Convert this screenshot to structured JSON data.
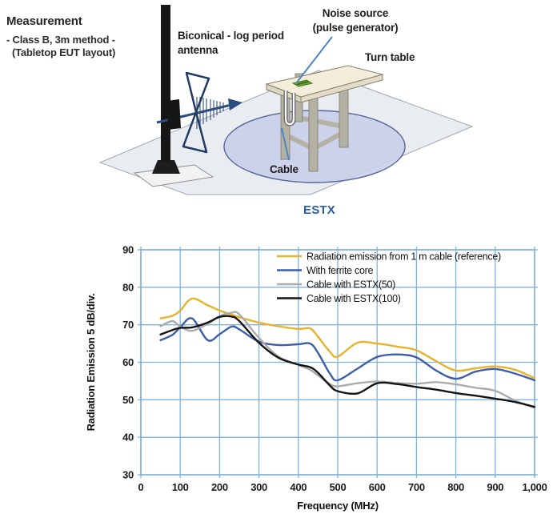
{
  "measurement_note": {
    "heading": "Measurement",
    "line1": "- Class B, 3m method -",
    "line2": "(Tabletop EUT layout)"
  },
  "diagram": {
    "labels": {
      "antenna": "Biconical - log period\nantenna",
      "noise_source": "Noise source\n(pulse generator)",
      "turn_table": "Turn table",
      "cable": "Cable"
    },
    "colors": {
      "callout_line": "#4A86C8",
      "floor": "#E9ECF1",
      "turntable": "#C9CFE8",
      "tabletop": "#F4EDDA",
      "noise_source": "#6CA433",
      "antenna_outline": "#1F3864"
    }
  },
  "chart_data": {
    "type": "line",
    "title": "ESTX",
    "title_color": "#2B5CA8",
    "xlabel": "Frequency (MHz)",
    "ylabel": "Radiation Emission 5 dB/div.",
    "xlim": [
      0,
      1000
    ],
    "ylim": [
      30,
      90
    ],
    "x_ticks": [
      0,
      100,
      200,
      300,
      400,
      500,
      600,
      700,
      800,
      900,
      1000
    ],
    "x_tick_labels": [
      "0",
      "100",
      "200",
      "300",
      "400",
      "500",
      "600",
      "700",
      "800",
      "900",
      "1,000"
    ],
    "y_ticks": [
      30,
      40,
      50,
      60,
      70,
      80,
      90
    ],
    "grid": true,
    "grid_color": "#7FB2DC",
    "legend_position": "upper right",
    "x": [
      50,
      80,
      100,
      130,
      170,
      200,
      230,
      250,
      300,
      350,
      400,
      430,
      450,
      480,
      500,
      550,
      600,
      650,
      700,
      750,
      800,
      850,
      900,
      950,
      1000
    ],
    "series": [
      {
        "name": "Radiation emission from 1 m cable (reference)",
        "color": "#E8B22B",
        "values": [
          71.7,
          72.4,
          73.8,
          77.0,
          75.2,
          73.8,
          72.7,
          72.0,
          70.6,
          69.6,
          68.9,
          69.0,
          66.8,
          62.8,
          61.5,
          65.2,
          65.0,
          64.2,
          63.2,
          60.3,
          57.8,
          58.4,
          58.9,
          58.0,
          55.8
        ]
      },
      {
        "name": "With ferrite core",
        "color": "#3D5EA8",
        "values": [
          65.9,
          67.3,
          69.3,
          71.7,
          65.9,
          67.5,
          69.5,
          68.8,
          65.5,
          64.6,
          64.8,
          65.0,
          62.5,
          57.0,
          55.2,
          58.3,
          61.4,
          62.1,
          61.3,
          57.8,
          55.6,
          57.5,
          58.2,
          57.0,
          55.2
        ]
      },
      {
        "name": "Cable with ESTX(50)",
        "color": "#ABABAB",
        "values": [
          69.6,
          71.0,
          69.5,
          68.4,
          70.3,
          72.3,
          73.2,
          72.8,
          66.5,
          61.5,
          59.3,
          58.0,
          56.5,
          54.2,
          53.6,
          54.4,
          54.9,
          54.5,
          54.3,
          54.7,
          54.1,
          53.2,
          52.4,
          49.8,
          47.9
        ]
      },
      {
        "name": "Cable with ESTX(100)",
        "color": "#141414",
        "values": [
          67.4,
          68.6,
          69.2,
          69.3,
          70.6,
          72.1,
          72.2,
          71.0,
          65.2,
          61.2,
          59.4,
          58.7,
          57.2,
          53.8,
          52.3,
          51.7,
          54.4,
          54.2,
          53.4,
          52.7,
          51.8,
          51.1,
          50.3,
          49.4,
          48.1
        ]
      }
    ]
  }
}
